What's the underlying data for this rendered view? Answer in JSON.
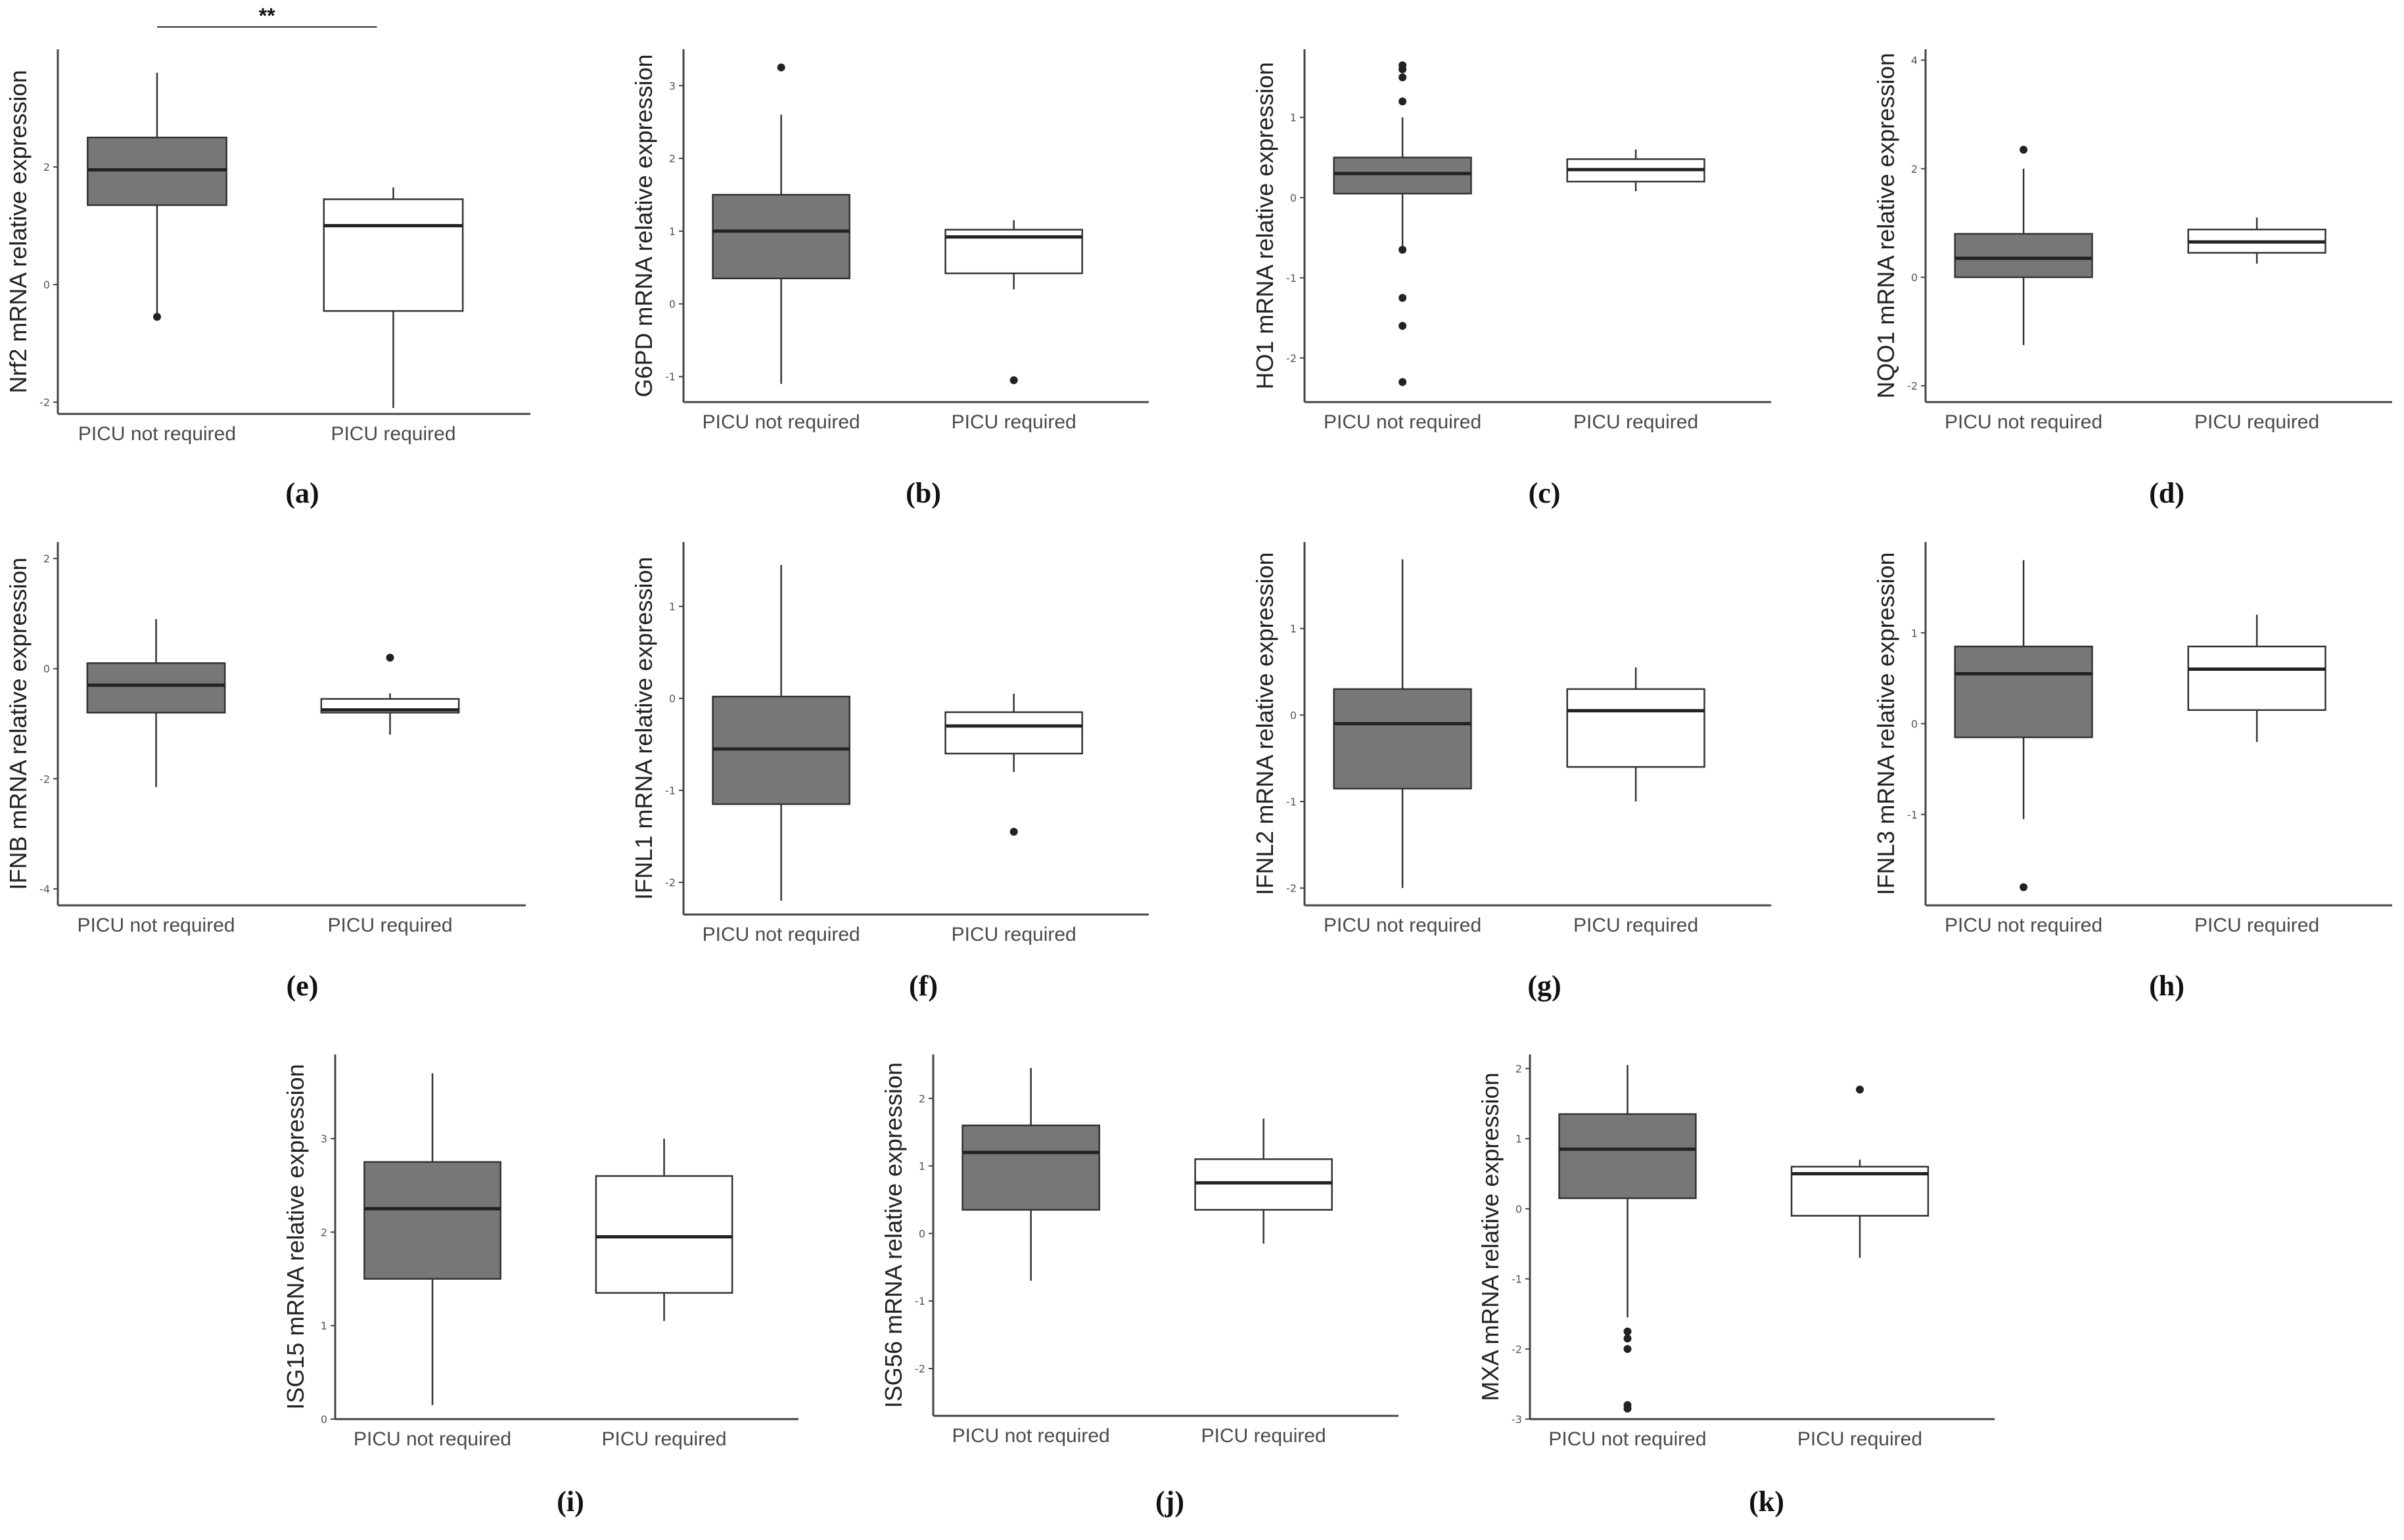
{
  "figure": {
    "group_labels": [
      "PICU not required",
      "PICU required"
    ],
    "colors": {
      "not_required_fill": "#777777",
      "required_fill": "#ffffff",
      "stroke": "#333333"
    }
  },
  "chart_data": [
    {
      "type": "box",
      "panel": "(a)",
      "ylabel": "Nrf2 mRNA relative expression",
      "ylim": [
        -2.2,
        4.0
      ],
      "yticks": [
        -2,
        0,
        2
      ],
      "categories": [
        "PICU not required",
        "PICU required"
      ],
      "boxes": [
        {
          "min": -0.5,
          "q1": 1.35,
          "median": 1.95,
          "q3": 2.5,
          "max": 3.6,
          "outliers": [
            -0.55
          ]
        },
        {
          "min": -2.1,
          "q1": -0.45,
          "median": 1.0,
          "q3": 1.45,
          "max": 1.65,
          "outliers": []
        }
      ],
      "significance": "**"
    },
    {
      "type": "box",
      "panel": "(b)",
      "ylabel": "G6PD mRNA relative expression",
      "ylim": [
        -1.35,
        3.5
      ],
      "yticks": [
        -1,
        0,
        1,
        2,
        3
      ],
      "categories": [
        "PICU not required",
        "PICU required"
      ],
      "boxes": [
        {
          "min": -1.1,
          "q1": 0.35,
          "median": 1.0,
          "q3": 1.5,
          "max": 2.6,
          "outliers": [
            3.25
          ]
        },
        {
          "min": 0.2,
          "q1": 0.42,
          "median": 0.92,
          "q3": 1.02,
          "max": 1.15,
          "outliers": [
            -1.05
          ]
        }
      ]
    },
    {
      "type": "box",
      "panel": "(c)",
      "ylabel": "HO1 mRNA relative expression",
      "ylim": [
        -2.55,
        1.85
      ],
      "yticks": [
        -2,
        -1,
        0,
        1
      ],
      "categories": [
        "PICU not required",
        "PICU required"
      ],
      "boxes": [
        {
          "min": -0.6,
          "q1": 0.05,
          "median": 0.3,
          "q3": 0.5,
          "max": 1.0,
          "outliers": [
            1.65,
            1.6,
            1.5,
            1.2,
            -0.65,
            -1.25,
            -1.6,
            -2.3
          ]
        },
        {
          "min": 0.08,
          "q1": 0.2,
          "median": 0.35,
          "q3": 0.48,
          "max": 0.6,
          "outliers": []
        }
      ]
    },
    {
      "type": "box",
      "panel": "(d)",
      "ylabel": "NQO1 mRNA relative expression",
      "ylim": [
        -2.3,
        4.2
      ],
      "yticks": [
        -2,
        0,
        2,
        4
      ],
      "categories": [
        "PICU not required",
        "PICU required"
      ],
      "boxes": [
        {
          "min": -1.25,
          "q1": 0.0,
          "median": 0.35,
          "q3": 0.8,
          "max": 2.0,
          "outliers": [
            2.35
          ]
        },
        {
          "min": 0.25,
          "q1": 0.45,
          "median": 0.65,
          "q3": 0.88,
          "max": 1.1,
          "outliers": []
        }
      ]
    },
    {
      "type": "box",
      "panel": "(e)",
      "ylabel": "IFNB mRNA relative expression",
      "ylim": [
        -4.3,
        2.3
      ],
      "yticks": [
        -4,
        -2,
        0,
        2
      ],
      "categories": [
        "PICU not required",
        "PICU required"
      ],
      "boxes": [
        {
          "min": -2.15,
          "q1": -0.8,
          "median": -0.3,
          "q3": 0.1,
          "max": 0.9,
          "outliers": []
        },
        {
          "min": -1.2,
          "q1": -0.8,
          "median": -0.75,
          "q3": -0.55,
          "max": -0.45,
          "outliers": [
            0.2
          ]
        }
      ]
    },
    {
      "type": "box",
      "panel": "(f)",
      "ylabel": "IFNL1 mRNA relative expression",
      "ylim": [
        -2.35,
        1.7
      ],
      "yticks": [
        -2,
        -1,
        0,
        1
      ],
      "categories": [
        "PICU not required",
        "PICU required"
      ],
      "boxes": [
        {
          "min": -2.2,
          "q1": -1.15,
          "median": -0.55,
          "q3": 0.02,
          "max": 1.45,
          "outliers": []
        },
        {
          "min": -0.8,
          "q1": -0.6,
          "median": -0.3,
          "q3": -0.15,
          "max": 0.05,
          "outliers": [
            -1.45
          ]
        }
      ]
    },
    {
      "type": "box",
      "panel": "(g)",
      "ylabel": "IFNL2 mRNA relative expression",
      "ylim": [
        -2.2,
        2.0
      ],
      "yticks": [
        -2,
        -1,
        0,
        1
      ],
      "categories": [
        "PICU not required",
        "PICU required"
      ],
      "boxes": [
        {
          "min": -2.0,
          "q1": -0.85,
          "median": -0.1,
          "q3": 0.3,
          "max": 1.8,
          "outliers": []
        },
        {
          "min": -1.0,
          "q1": -0.6,
          "median": 0.05,
          "q3": 0.3,
          "max": 0.55,
          "outliers": []
        }
      ]
    },
    {
      "type": "box",
      "panel": "(h)",
      "ylabel": "IFNL3 mRNA relative expression",
      "ylim": [
        -2.0,
        2.0
      ],
      "yticks": [
        -1,
        0,
        1
      ],
      "categories": [
        "PICU not required",
        "PICU required"
      ],
      "boxes": [
        {
          "min": -1.05,
          "q1": -0.15,
          "median": 0.55,
          "q3": 0.85,
          "max": 1.8,
          "outliers": [
            -1.8
          ]
        },
        {
          "min": -0.2,
          "q1": 0.15,
          "median": 0.6,
          "q3": 0.85,
          "max": 1.2,
          "outliers": []
        }
      ]
    },
    {
      "type": "box",
      "panel": "(i)",
      "ylabel": "ISG15 mRNA relative expression",
      "ylim": [
        0.0,
        3.9
      ],
      "yticks": [
        0,
        1,
        2,
        3
      ],
      "categories": [
        "PICU not required",
        "PICU required"
      ],
      "boxes": [
        {
          "min": 0.15,
          "q1": 1.5,
          "median": 2.25,
          "q3": 2.75,
          "max": 3.7,
          "outliers": []
        },
        {
          "min": 1.05,
          "q1": 1.35,
          "median": 1.95,
          "q3": 2.6,
          "max": 3.0,
          "outliers": []
        }
      ]
    },
    {
      "type": "box",
      "panel": "(j)",
      "ylabel": "ISG56 mRNA relative expression",
      "ylim": [
        -2.7,
        2.65
      ],
      "yticks": [
        -2,
        -1,
        0,
        1,
        2
      ],
      "categories": [
        "PICU not required",
        "PICU required"
      ],
      "boxes": [
        {
          "min": -0.7,
          "q1": 0.35,
          "median": 1.2,
          "q3": 1.6,
          "max": 2.45,
          "outliers": []
        },
        {
          "min": -0.15,
          "q1": 0.35,
          "median": 0.75,
          "q3": 1.1,
          "max": 1.7,
          "outliers": []
        }
      ]
    },
    {
      "type": "box",
      "panel": "(k)",
      "ylabel": "MXA mRNA relative expression",
      "ylim": [
        -3.0,
        2.2
      ],
      "yticks": [
        -3,
        -2,
        -1,
        0,
        1,
        2
      ],
      "categories": [
        "PICU not required",
        "PICU required"
      ],
      "boxes": [
        {
          "min": -1.55,
          "q1": 0.15,
          "median": 0.85,
          "q3": 1.35,
          "max": 2.05,
          "outliers": [
            -1.75,
            -1.85,
            -2.0,
            -2.8,
            -2.85
          ]
        },
        {
          "min": -0.7,
          "q1": -0.1,
          "median": 0.5,
          "q3": 0.6,
          "max": 0.7,
          "outliers": [
            1.7
          ]
        }
      ]
    }
  ]
}
